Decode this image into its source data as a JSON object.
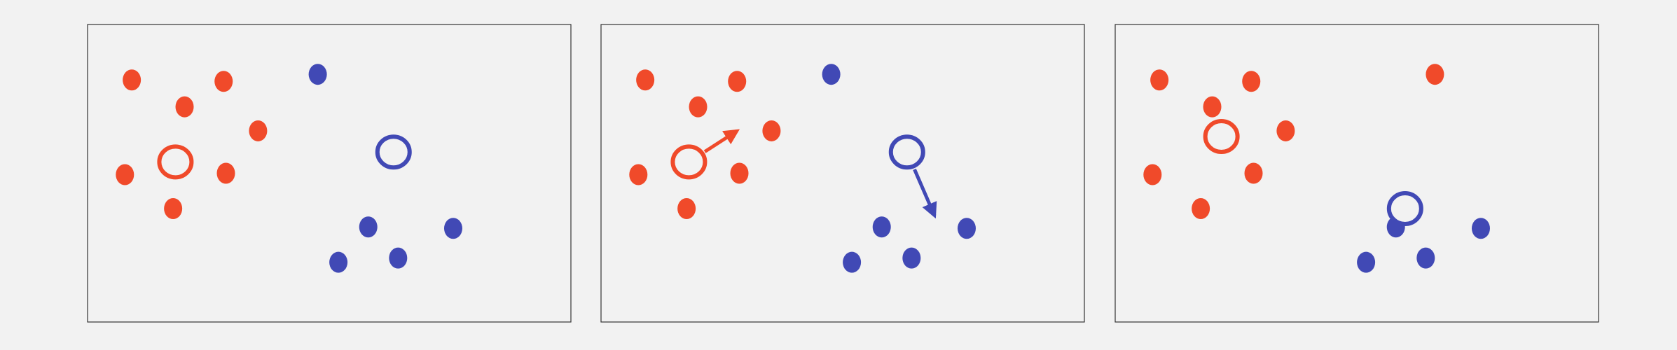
{
  "colors": {
    "background": "#f2f2f2",
    "panel_fill": "#f2f2f2",
    "panel_border": "#333333",
    "red": "#f04a2a",
    "blue": "#4149b5"
  },
  "panels": [
    {
      "id": "step-1",
      "red_points": [
        [
          -0.86,
          0.66
        ],
        [
          -0.63,
          0.47
        ],
        [
          -0.46,
          0.65
        ],
        [
          -0.31,
          0.3
        ],
        [
          -0.89,
          -0.01
        ],
        [
          -0.45,
          0.0
        ],
        [
          -0.68,
          -0.25
        ]
      ],
      "blue_points": [
        [
          -0.05,
          0.7
        ],
        [
          0.17,
          -0.38
        ],
        [
          0.3,
          -0.6
        ],
        [
          0.54,
          -0.39
        ],
        [
          0.04,
          -0.63
        ]
      ],
      "red_centroid": [
        -0.67,
        0.08
      ],
      "blue_centroid": [
        0.28,
        0.15
      ],
      "arrows": []
    },
    {
      "id": "step-2",
      "red_points": [
        [
          -0.86,
          0.66
        ],
        [
          -0.63,
          0.47
        ],
        [
          -0.46,
          0.65
        ],
        [
          -0.31,
          0.3
        ],
        [
          -0.89,
          -0.01
        ],
        [
          -0.45,
          0.0
        ],
        [
          -0.68,
          -0.25
        ]
      ],
      "blue_points": [
        [
          -0.05,
          0.7
        ],
        [
          0.17,
          -0.38
        ],
        [
          0.3,
          -0.6
        ],
        [
          0.54,
          -0.39
        ],
        [
          0.04,
          -0.63
        ]
      ],
      "red_centroid": [
        -0.67,
        0.08
      ],
      "blue_centroid": [
        0.28,
        0.15
      ],
      "arrows": [
        {
          "color": "red",
          "from": [
            -0.67,
            0.08
          ],
          "to": [
            -0.46,
            0.3
          ]
        },
        {
          "color": "blue",
          "from": [
            0.28,
            0.15
          ],
          "to": [
            0.4,
            -0.3
          ]
        }
      ]
    },
    {
      "id": "step-3",
      "red_points": [
        [
          -0.86,
          0.66
        ],
        [
          -0.63,
          0.47
        ],
        [
          -0.46,
          0.65
        ],
        [
          -0.31,
          0.3
        ],
        [
          -0.89,
          -0.01
        ],
        [
          -0.45,
          0.0
        ],
        [
          -0.68,
          -0.25
        ]
      ],
      "blue_points": [
        [
          0.34,
          0.7
        ],
        [
          0.17,
          -0.38
        ],
        [
          0.3,
          -0.6
        ],
        [
          0.54,
          -0.39
        ],
        [
          0.04,
          -0.63
        ]
      ],
      "red_centroid": [
        -0.59,
        0.26
      ],
      "blue_centroid": [
        0.21,
        -0.25
      ],
      "arrows": []
    }
  ],
  "panel_3_recolored_point_color": "red"
}
